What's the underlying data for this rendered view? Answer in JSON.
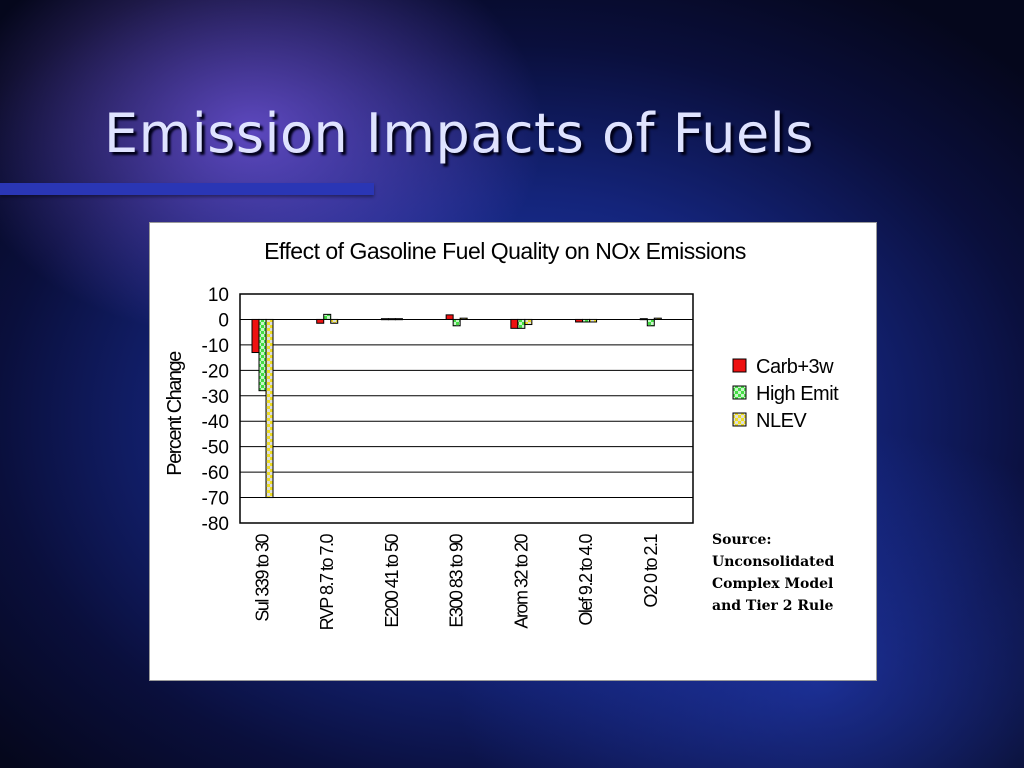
{
  "slide": {
    "title": "Emission Impacts of Fuels"
  },
  "source": {
    "lines": [
      "Source:",
      "Unconsolidated",
      "Complex Model",
      "and Tier 2 Rule"
    ]
  },
  "colors": {
    "carb": "#ee1111",
    "high_emit": "#44dd44",
    "nlev": "#dddddd",
    "nlev_pattern": "#eedd22"
  },
  "chart_data": {
    "type": "bar",
    "title": "Effect of Gasoline Fuel Quality on NOx Emissions",
    "xlabel": "",
    "ylabel": "Percent Change",
    "ylim": [
      -80,
      10
    ],
    "yticks": [
      10,
      0,
      -10,
      -20,
      -30,
      -40,
      -50,
      -60,
      -70,
      -80
    ],
    "grid": true,
    "legend_position": "right",
    "categories": [
      "Sul 339 to 30",
      "RVP 8.7 to 7.0",
      "E200 41 to 50",
      "E300 83 to 90",
      "Arom 32 to 20",
      "Olef 9.2 to 4.0",
      "O2 0 to 2.1"
    ],
    "series": [
      {
        "name": "Carb+3w",
        "values": [
          -13,
          -1.5,
          0.3,
          1.8,
          -3.5,
          -1,
          0.3
        ]
      },
      {
        "name": "High Emit",
        "values": [
          -28,
          2,
          0.3,
          -2.5,
          -3.5,
          -1,
          -2.5
        ]
      },
      {
        "name": "NLEV",
        "values": [
          -70,
          -1.5,
          0.3,
          0.5,
          -2,
          -1,
          0.5
        ]
      }
    ]
  }
}
